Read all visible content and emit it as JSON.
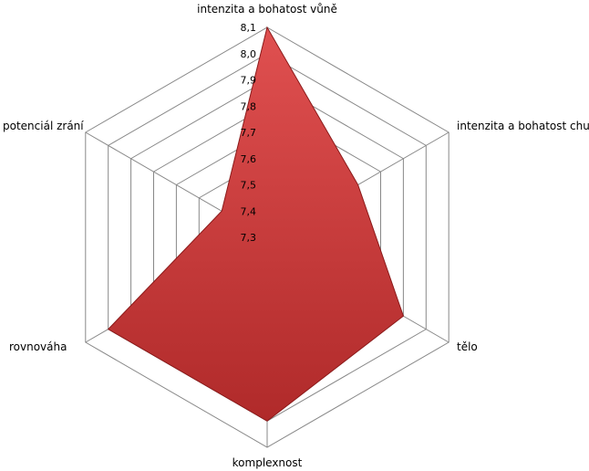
{
  "chart_data": {
    "type": "radar",
    "categories": [
      "intenzita a bohatost vůně",
      "intenzita a bohatost chuti",
      "tělo",
      "komplexnost",
      "rovnováha",
      "potenciál zrání"
    ],
    "series": [
      {
        "values": [
          8.1,
          7.7,
          7.9,
          8.0,
          8.0,
          7.5
        ]
      }
    ],
    "rlim": [
      7.3,
      8.1
    ],
    "ticks": [
      "7,3",
      "7,4",
      "7,5",
      "7,6",
      "7,7",
      "7,8",
      "7,9",
      "8,0",
      "8,1"
    ],
    "colors": {
      "fill": "#d94040",
      "stroke": "#8b1a1a",
      "grid": "#888888"
    }
  }
}
